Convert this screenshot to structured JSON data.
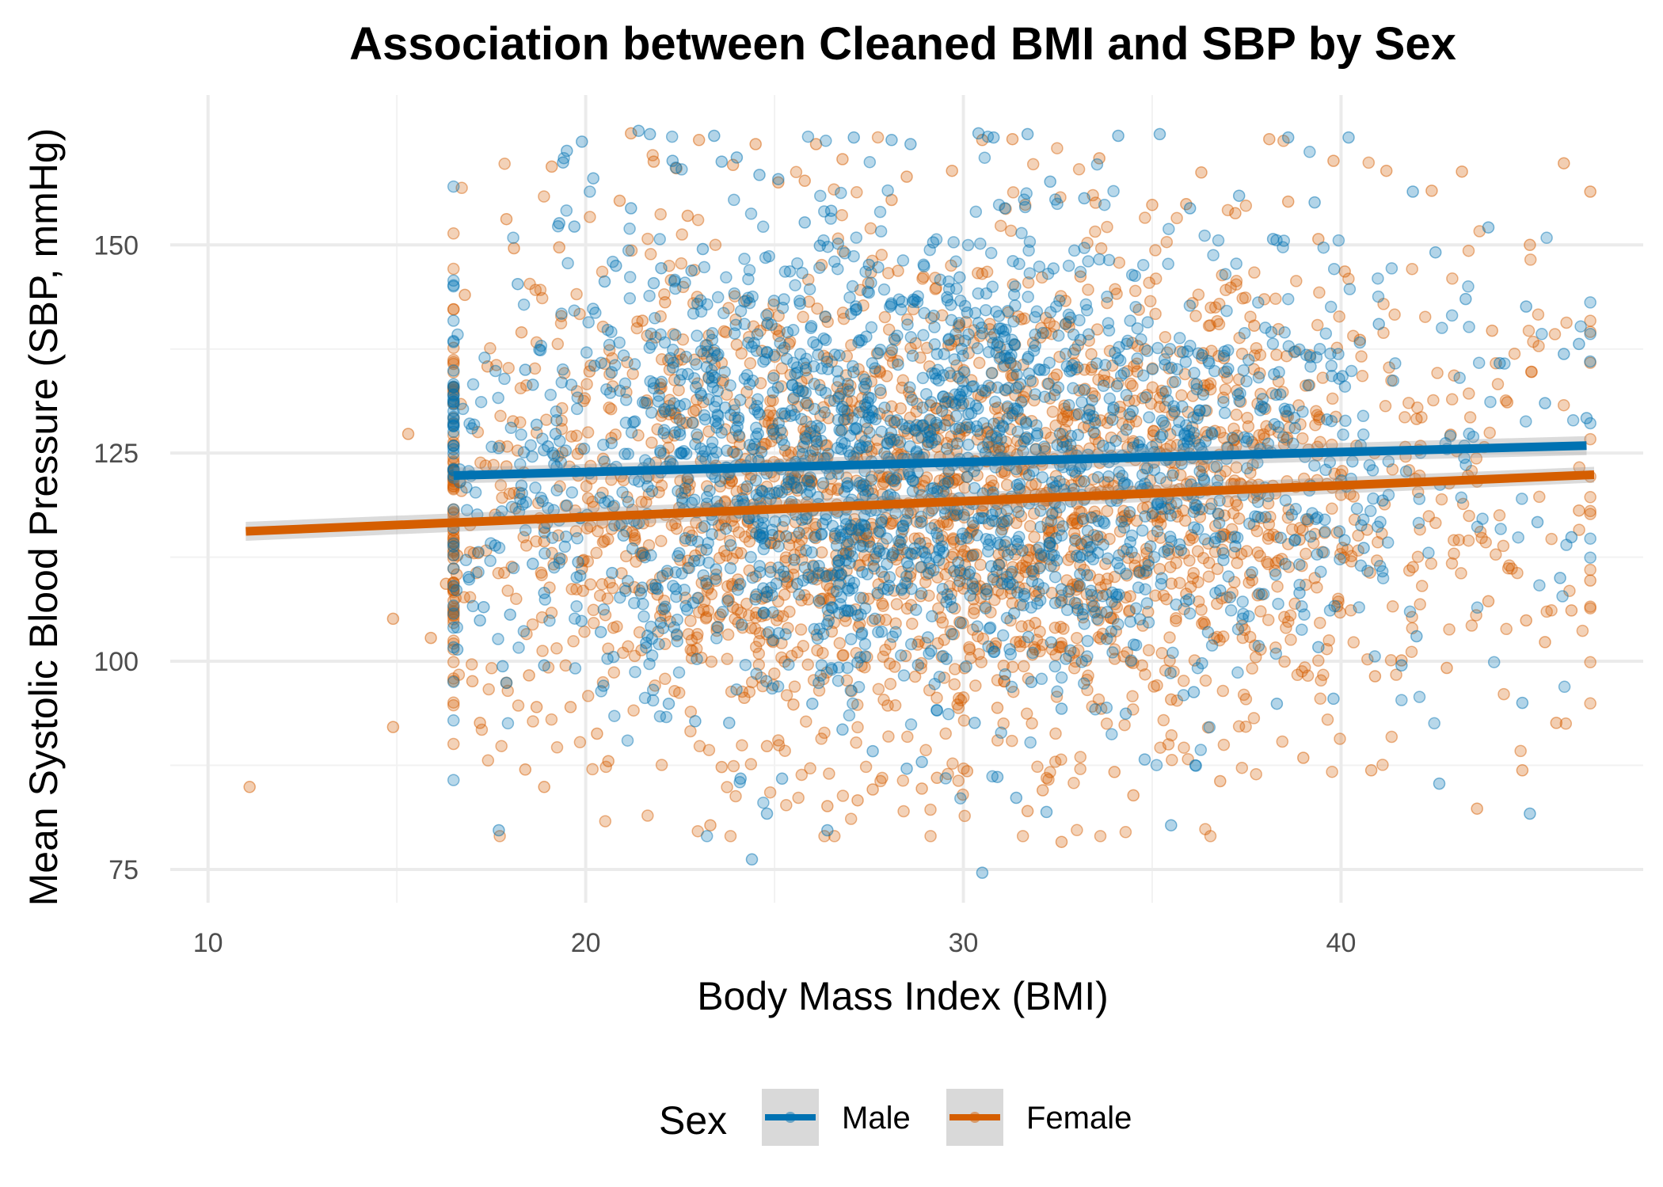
{
  "chart_data": {
    "type": "scatter",
    "title": "Association between Cleaned BMI and SBP by Sex",
    "xlabel": "Body Mass Index (BMI)",
    "ylabel": "Mean Systolic Blood Pressure (SBP, mmHg)",
    "xlim": [
      9,
      48
    ],
    "ylim": [
      71,
      168
    ],
    "x_ticks": [
      10,
      20,
      30,
      40
    ],
    "y_ticks": [
      75,
      100,
      125,
      150
    ],
    "grid": true,
    "legend": {
      "title": "Sex",
      "position": "bottom",
      "entries": [
        "Male",
        "Female"
      ]
    },
    "colors": {
      "Male": "#0072B2",
      "Female": "#D55E00",
      "ci_band": "#999999"
    },
    "series": [
      {
        "name": "Male",
        "trend": {
          "x": [
            16.5,
            46.5
          ],
          "y": [
            122.3,
            125.9
          ]
        },
        "points": [
          [
            17.7,
            79.7
          ],
          [
            16.6,
            101.4
          ],
          [
            17.2,
            104.9
          ],
          [
            17.8,
            99.4
          ],
          [
            17.9,
            97.4
          ],
          [
            18.2,
            145.3
          ],
          [
            18.4,
            135.0
          ],
          [
            18.6,
            133.2
          ],
          [
            18.7,
            128.4
          ],
          [
            18.9,
            99.5
          ],
          [
            19.0,
            125.8
          ],
          [
            19.4,
            159.9
          ],
          [
            19.5,
            161.3
          ],
          [
            19.9,
            162.4
          ],
          [
            19.3,
            152.6
          ],
          [
            19.7,
            152.2
          ],
          [
            20.2,
            158.0
          ],
          [
            20.5,
            145.6
          ],
          [
            20.8,
            147.5
          ],
          [
            21.2,
            154.4
          ],
          [
            21.4,
            163.7
          ],
          [
            21.7,
            163.3
          ],
          [
            21.8,
            145.4
          ],
          [
            22.0,
            147.2
          ],
          [
            22.3,
            160.1
          ],
          [
            22.8,
            146.9
          ],
          [
            23.1,
            149.5
          ],
          [
            23.4,
            163.1
          ],
          [
            23.6,
            160.0
          ],
          [
            24.0,
            160.5
          ],
          [
            24.2,
            143.2
          ],
          [
            24.6,
            158.4
          ],
          [
            25.1,
            157.9
          ],
          [
            25.8,
            152.7
          ],
          [
            26.2,
            149.9
          ],
          [
            26.5,
            154.1
          ],
          [
            27.1,
            162.9
          ],
          [
            27.5,
            147.6
          ],
          [
            28.1,
            162.6
          ],
          [
            28.6,
            162.1
          ],
          [
            29.2,
            150.3
          ],
          [
            29.9,
            146.1
          ],
          [
            30.4,
            163.4
          ],
          [
            30.8,
            162.9
          ],
          [
            31.1,
            154.4
          ],
          [
            31.7,
            163.3
          ],
          [
            32.3,
            157.6
          ],
          [
            33.2,
            155.6
          ],
          [
            34.1,
            163.1
          ],
          [
            35.2,
            163.3
          ],
          [
            36.0,
            154.4
          ],
          [
            37.3,
            155.9
          ],
          [
            38.2,
            150.7
          ],
          [
            38.6,
            162.9
          ],
          [
            39.3,
            155.1
          ],
          [
            40.2,
            162.9
          ],
          [
            41.0,
            140.5
          ],
          [
            41.9,
            156.4
          ],
          [
            42.5,
            149.1
          ],
          [
            43.3,
            143.5
          ],
          [
            43.9,
            152.1
          ],
          [
            44.2,
            135.8
          ],
          [
            44.9,
            142.6
          ],
          [
            45.4,
            131.0
          ],
          [
            45.9,
            136.9
          ],
          [
            46.3,
            138.1
          ],
          [
            46.5,
            129.2
          ],
          [
            46.1,
            114.9
          ],
          [
            45.8,
            110.0
          ],
          [
            45.2,
            116.7
          ],
          [
            44.8,
            95.0
          ],
          [
            45.0,
            81.7
          ],
          [
            42.6,
            85.3
          ],
          [
            42.0,
            103.0
          ],
          [
            41.6,
            99.5
          ],
          [
            41.1,
            119.3
          ],
          [
            40.6,
            113.6
          ],
          [
            40.3,
            124.0
          ],
          [
            39.8,
            95.5
          ],
          [
            39.4,
            101.7
          ],
          [
            38.9,
            108.2
          ],
          [
            38.3,
            94.9
          ],
          [
            37.9,
            130.6
          ],
          [
            37.2,
            113.8
          ],
          [
            36.8,
            108.5
          ],
          [
            36.1,
            96.3
          ],
          [
            35.5,
            80.3
          ],
          [
            35.4,
            119.7
          ],
          [
            34.8,
            88.2
          ],
          [
            34.3,
            93.7
          ],
          [
            33.8,
            105.9
          ],
          [
            33.1,
            138.6
          ],
          [
            32.6,
            94.3
          ],
          [
            32.2,
            81.9
          ],
          [
            31.8,
            97.5
          ],
          [
            31.4,
            83.6
          ],
          [
            30.9,
            86.1
          ],
          [
            30.5,
            74.6
          ],
          [
            30.3,
            92.6
          ],
          [
            29.7,
            106.5
          ],
          [
            29.3,
            94.1
          ],
          [
            28.9,
            87.9
          ],
          [
            28.5,
            87.1
          ],
          [
            28.0,
            108.6
          ],
          [
            27.6,
            89.2
          ],
          [
            27.2,
            105.5
          ],
          [
            26.8,
            91.8
          ],
          [
            26.4,
            79.7
          ],
          [
            26.0,
            94.9
          ],
          [
            25.6,
            109.3
          ],
          [
            25.2,
            85.9
          ],
          [
            24.8,
            81.7
          ],
          [
            24.4,
            76.2
          ],
          [
            24.1,
            85.9
          ],
          [
            23.8,
            92.6
          ],
          [
            23.5,
            104.1
          ],
          [
            23.2,
            113.4
          ],
          [
            22.9,
            92.8
          ],
          [
            22.6,
            118.2
          ],
          [
            22.2,
            94.9
          ],
          [
            21.9,
            108.7
          ],
          [
            21.6,
            102.2
          ],
          [
            21.3,
            128.8
          ],
          [
            21.0,
            115.1
          ],
          [
            20.7,
            110.6
          ],
          [
            20.4,
            103.5
          ],
          [
            20.1,
            122.6
          ],
          [
            19.8,
            111.9
          ],
          [
            19.5,
            118.7
          ],
          [
            19.2,
            127.3
          ],
          [
            18.9,
            108.2
          ],
          [
            18.6,
            111.7
          ],
          [
            18.3,
            121.1
          ],
          [
            18.0,
            105.6
          ],
          [
            17.6,
            113.9
          ],
          [
            17.3,
            106.5
          ],
          [
            16.9,
            110.1
          ]
        ],
        "cluster": {
          "x_mean": 29.0,
          "x_sd": 6.3,
          "y_mean": 123.5,
          "y_sd": 13.5,
          "count": 2000
        }
      },
      {
        "name": "Female",
        "trend": {
          "x": [
            11.0,
            46.7
          ],
          "y": [
            115.6,
            122.4
          ]
        },
        "points": [
          [
            11.1,
            84.9
          ],
          [
            14.9,
            105.1
          ],
          [
            14.9,
            92.1
          ],
          [
            15.3,
            127.3
          ],
          [
            15.9,
            102.8
          ],
          [
            16.3,
            109.3
          ],
          [
            16.6,
            112.7
          ],
          [
            16.8,
            144.0
          ],
          [
            17.0,
            97.6
          ],
          [
            17.2,
            92.6
          ],
          [
            17.4,
            135.4
          ],
          [
            17.6,
            117.6
          ],
          [
            17.9,
            153.1
          ],
          [
            18.1,
            149.6
          ],
          [
            18.3,
            139.5
          ],
          [
            18.5,
            98.3
          ],
          [
            18.7,
            94.5
          ],
          [
            18.9,
            84.9
          ],
          [
            18.4,
            87.0
          ],
          [
            19.1,
            159.4
          ],
          [
            19.3,
            149.7
          ],
          [
            19.6,
            94.5
          ],
          [
            19.8,
            122.3
          ],
          [
            20.1,
            134.8
          ],
          [
            20.3,
            91.3
          ],
          [
            20.6,
            88.0
          ],
          [
            20.9,
            155.3
          ],
          [
            21.2,
            163.4
          ],
          [
            21.5,
            140.9
          ],
          [
            21.8,
            160.0
          ],
          [
            22.1,
            143.1
          ],
          [
            22.4,
            159.2
          ],
          [
            22.7,
            153.5
          ],
          [
            23.0,
            162.6
          ],
          [
            23.3,
            80.3
          ],
          [
            23.6,
            87.3
          ],
          [
            23.9,
            159.6
          ],
          [
            24.2,
            95.6
          ],
          [
            24.5,
            162.1
          ],
          [
            24.8,
            89.8
          ],
          [
            25.1,
            157.5
          ],
          [
            25.5,
            94.8
          ],
          [
            25.8,
            157.7
          ],
          [
            26.1,
            162.1
          ],
          [
            26.4,
            82.6
          ],
          [
            26.8,
            160.3
          ],
          [
            27.2,
            83.3
          ],
          [
            27.6,
            84.6
          ],
          [
            28.1,
            155.4
          ],
          [
            28.5,
            158.2
          ],
          [
            28.9,
            84.7
          ],
          [
            29.3,
            86.0
          ],
          [
            29.7,
            158.9
          ],
          [
            30.1,
            86.8
          ],
          [
            30.5,
            162.6
          ],
          [
            30.9,
            94.4
          ],
          [
            31.3,
            162.7
          ],
          [
            31.7,
            82.0
          ],
          [
            32.1,
            84.5
          ],
          [
            32.6,
            78.3
          ],
          [
            33.1,
            146.2
          ],
          [
            33.6,
            160.4
          ],
          [
            34.0,
            86.7
          ],
          [
            34.5,
            83.9
          ],
          [
            35.0,
            154.8
          ],
          [
            35.5,
            95.4
          ],
          [
            35.9,
            154.9
          ],
          [
            36.3,
            158.7
          ],
          [
            36.8,
            85.6
          ],
          [
            37.2,
            153.8
          ],
          [
            37.7,
            140.3
          ],
          [
            38.1,
            162.7
          ],
          [
            38.6,
            155.2
          ],
          [
            39.0,
            88.4
          ],
          [
            39.4,
            150.7
          ],
          [
            39.8,
            160.1
          ],
          [
            40.1,
            146.8
          ],
          [
            40.5,
            138.6
          ],
          [
            40.8,
            86.9
          ],
          [
            41.2,
            158.9
          ],
          [
            41.6,
            100.1
          ],
          [
            42.0,
            129.1
          ],
          [
            42.4,
            156.5
          ],
          [
            42.8,
            99.2
          ],
          [
            43.2,
            158.8
          ],
          [
            43.6,
            82.3
          ],
          [
            44.0,
            139.7
          ],
          [
            44.4,
            131.1
          ],
          [
            44.8,
            86.9
          ],
          [
            45.0,
            150.0
          ],
          [
            45.4,
            102.3
          ],
          [
            45.9,
            159.8
          ],
          [
            46.1,
            106.1
          ],
          [
            46.3,
            118.1
          ],
          [
            46.6,
            156.4
          ],
          [
            46.6,
            109.7
          ],
          [
            45.7,
            92.6
          ],
          [
            44.9,
            104.9
          ],
          [
            43.9,
            107.2
          ],
          [
            42.9,
            127.2
          ],
          [
            41.9,
            111.3
          ],
          [
            40.9,
            98.2
          ],
          [
            39.9,
            106.6
          ],
          [
            38.9,
            114.6
          ],
          [
            37.9,
            108.0
          ],
          [
            36.9,
            136.4
          ],
          [
            35.9,
            108.1
          ],
          [
            34.9,
            112.0
          ],
          [
            33.9,
            105.2
          ],
          [
            32.9,
            120.2
          ],
          [
            31.9,
            104.6
          ],
          [
            30.9,
            118.9
          ],
          [
            29.9,
            104.7
          ],
          [
            28.9,
            116.8
          ],
          [
            27.9,
            110.1
          ],
          [
            26.9,
            118.5
          ],
          [
            25.9,
            110.4
          ],
          [
            24.9,
            114.2
          ],
          [
            23.9,
            106.5
          ],
          [
            22.9,
            112.7
          ],
          [
            21.9,
            108.0
          ],
          [
            20.9,
            116.3
          ],
          [
            19.9,
            111.1
          ],
          [
            18.9,
            114.4
          ],
          [
            17.9,
            123.4
          ]
        ],
        "cluster": {
          "x_mean": 29.5,
          "x_sd": 7.0,
          "y_mean": 118.5,
          "y_sd": 14.5,
          "count": 2300
        }
      }
    ]
  }
}
